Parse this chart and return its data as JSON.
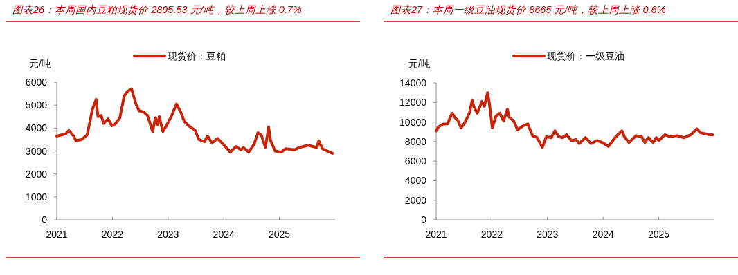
{
  "chart_data": [
    {
      "type": "line",
      "title": "图表26：本周国内豆粕现货价 2895.53 元/吨，较上周上涨 0.7%",
      "ylabel": "元/吨",
      "legend": "top",
      "marker": "none",
      "line_style": "solid",
      "grid": false,
      "xlim": [
        "2021-01-01",
        "2026-01-01"
      ],
      "xticks": [
        "2021",
        "2022",
        "2023",
        "2024",
        "2025"
      ],
      "ylim": [
        0,
        6000
      ],
      "yticks": [
        0,
        1000,
        2000,
        3000,
        4000,
        5000,
        6000
      ],
      "series": [
        {
          "name": "现货价：豆粕",
          "color": "#c8260a",
          "x": [
            "2021-01-01",
            "2021-02-01",
            "2021-03-01",
            "2021-03-22",
            "2021-04-22",
            "2021-05-07",
            "2021-06-13",
            "2021-07-19",
            "2021-08-04",
            "2021-08-22",
            "2021-09-16",
            "2021-09-28",
            "2021-10-19",
            "2021-11-04",
            "2021-12-04",
            "2021-12-28",
            "2022-01-22",
            "2022-02-19",
            "2022-03-19",
            "2022-04-10",
            "2022-05-07",
            "2022-06-04",
            "2022-06-25",
            "2022-07-25",
            "2022-08-19",
            "2022-09-22",
            "2022-10-10",
            "2022-10-25",
            "2022-11-04",
            "2022-11-28",
            "2022-12-25",
            "2023-01-25",
            "2023-02-25",
            "2023-03-25",
            "2023-04-16",
            "2023-05-16",
            "2023-06-28",
            "2023-07-22",
            "2023-08-28",
            "2023-09-16",
            "2023-10-16",
            "2023-11-22",
            "2023-12-28",
            "2024-02-13",
            "2024-03-22",
            "2024-04-22",
            "2024-05-10",
            "2024-06-13",
            "2024-07-19",
            "2024-08-13",
            "2024-09-04",
            "2024-10-01",
            "2024-10-22",
            "2024-11-04",
            "2024-12-04",
            "2025-01-13",
            "2025-02-13",
            "2025-04-10",
            "2025-05-10",
            "2025-07-10",
            "2025-09-04",
            "2025-09-16",
            "2025-10-10",
            "2025-11-10",
            "2025-12-16"
          ],
          "values": [
            3650,
            3700,
            3750,
            3900,
            3650,
            3450,
            3500,
            3700,
            4200,
            4800,
            5250,
            4500,
            4550,
            4200,
            4400,
            4100,
            4200,
            4450,
            5400,
            5600,
            5700,
            5050,
            4750,
            4700,
            4550,
            3850,
            4450,
            4150,
            4500,
            3850,
            4150,
            4550,
            5050,
            4700,
            4300,
            4100,
            3900,
            3500,
            3400,
            3650,
            3350,
            3550,
            3300,
            2950,
            3200,
            3050,
            3150,
            2950,
            3300,
            3800,
            3700,
            3150,
            4050,
            3450,
            3000,
            2950,
            3100,
            3050,
            3150,
            3250,
            3150,
            3450,
            3100,
            3000,
            2900
          ]
        }
      ]
    },
    {
      "type": "line",
      "title": "图表27：本周一级豆油现货价 8665 元/吨，较上周上涨 0.6%",
      "ylabel": "元/吨",
      "legend": "top",
      "marker": "none",
      "line_style": "solid",
      "grid": false,
      "xlim": [
        "2021-01-01",
        "2026-01-01"
      ],
      "xticks": [
        "2021",
        "2022",
        "2023",
        "2024",
        "2025"
      ],
      "ylim": [
        0,
        14000
      ],
      "yticks": [
        0,
        2000,
        4000,
        6000,
        8000,
        10000,
        12000,
        14000
      ],
      "series": [
        {
          "name": "现货价：一级豆油",
          "color": "#c8260a",
          "x": [
            "2021-01-01",
            "2021-01-16",
            "2021-02-16",
            "2021-03-16",
            "2021-04-16",
            "2021-05-07",
            "2021-05-22",
            "2021-06-13",
            "2021-07-07",
            "2021-08-07",
            "2021-08-25",
            "2021-09-07",
            "2021-09-28",
            "2021-10-28",
            "2021-11-13",
            "2021-12-04",
            "2021-12-16",
            "2022-01-04",
            "2022-01-28",
            "2022-02-22",
            "2022-03-19",
            "2022-04-13",
            "2022-04-25",
            "2022-05-25",
            "2022-06-19",
            "2022-07-25",
            "2022-08-25",
            "2022-09-25",
            "2022-10-25",
            "2022-11-28",
            "2022-12-25",
            "2023-01-25",
            "2023-02-19",
            "2023-03-16",
            "2023-04-07",
            "2023-05-07",
            "2023-06-07",
            "2023-07-07",
            "2023-07-28",
            "2023-09-07",
            "2023-10-13",
            "2023-11-22",
            "2023-12-28",
            "2024-02-04",
            "2024-03-19",
            "2024-05-04",
            "2024-05-19",
            "2024-06-19",
            "2024-08-04",
            "2024-09-10",
            "2024-10-01",
            "2024-10-25",
            "2024-11-25",
            "2024-12-16",
            "2025-01-01",
            "2025-02-10",
            "2025-03-16",
            "2025-05-01",
            "2025-06-16",
            "2025-08-01",
            "2025-09-07",
            "2025-10-01",
            "2025-11-01",
            "2025-12-01",
            "2025-12-22"
          ],
          "values": [
            9100,
            9500,
            9800,
            9800,
            10900,
            10400,
            10200,
            9400,
            9900,
            10900,
            12200,
            11500,
            10900,
            12100,
            11600,
            13000,
            11900,
            9400,
            10600,
            10900,
            10100,
            11300,
            10500,
            10100,
            9200,
            9600,
            9800,
            8600,
            8400,
            7400,
            8500,
            8400,
            9100,
            8500,
            8400,
            8700,
            8100,
            8200,
            7800,
            8400,
            7800,
            8100,
            7900,
            7500,
            8400,
            9100,
            8500,
            7900,
            8600,
            8500,
            7900,
            8400,
            7900,
            8400,
            8100,
            8700,
            8500,
            8600,
            8400,
            8700,
            9300,
            8900,
            8800,
            8700,
            8700
          ]
        }
      ]
    }
  ]
}
